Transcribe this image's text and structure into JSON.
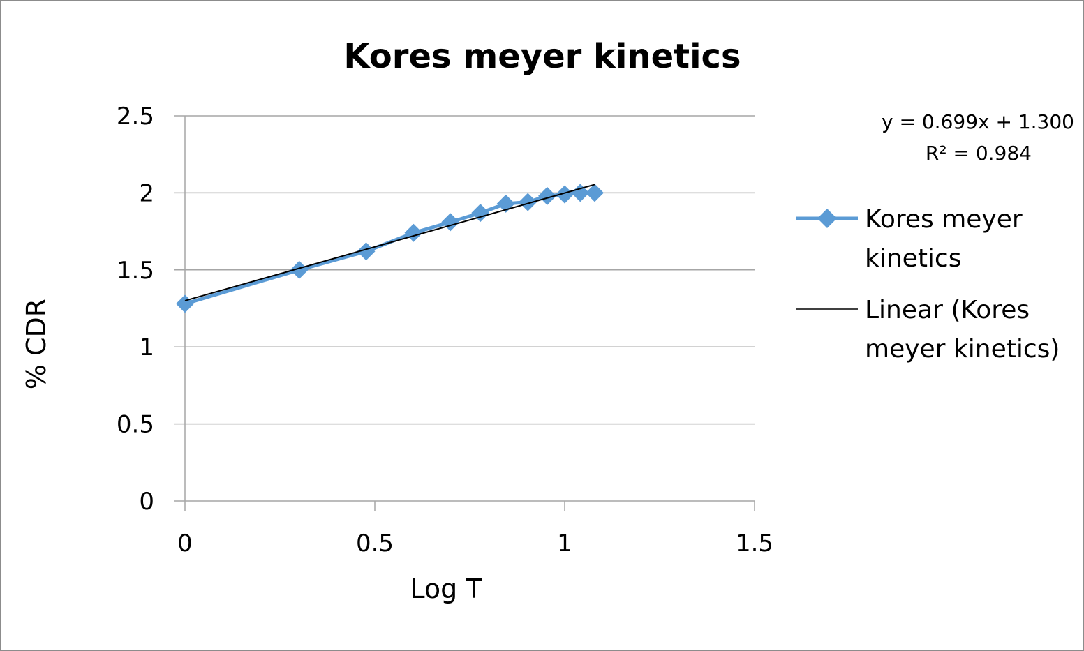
{
  "chart_data": {
    "type": "scatter",
    "title": "Kores meyer kinetics",
    "xlabel": "Log T",
    "ylabel": "% CDR",
    "xlim": [
      0,
      1.5
    ],
    "ylim": [
      0,
      2.5
    ],
    "x_ticks": [
      "0",
      "0.5",
      "1",
      "1.5"
    ],
    "y_ticks": [
      "0",
      "0.5",
      "1",
      "1.5",
      "2",
      "2.5"
    ],
    "x_tick_values": [
      0,
      0.5,
      1,
      1.5
    ],
    "y_tick_values": [
      0,
      0.5,
      1,
      1.5,
      2,
      2.5
    ],
    "grid": "horizontal",
    "legend_position": "right",
    "series": [
      {
        "name": "Kores meyer kinetics",
        "name_lines": [
          "Kores meyer",
          "kinetics"
        ],
        "color": "#5b9bd5",
        "marker": "diamond",
        "x": [
          0,
          0.301,
          0.477,
          0.602,
          0.699,
          0.778,
          0.845,
          0.903,
          0.954,
          1.0,
          1.041,
          1.079
        ],
        "y": [
          1.28,
          1.5,
          1.62,
          1.74,
          1.81,
          1.87,
          1.93,
          1.94,
          1.98,
          1.99,
          2.0,
          2.0
        ]
      }
    ],
    "trendline": {
      "name": "Linear (Kores meyer kinetics)",
      "name_lines": [
        "Linear (Kores",
        "meyer kinetics)"
      ],
      "color": "#000000",
      "slope": 0.699,
      "intercept": 1.3,
      "x_range": [
        0,
        1.079
      ],
      "equation": "y = 0.699x + 1.300",
      "r_squared": "R² = 0.984"
    }
  }
}
